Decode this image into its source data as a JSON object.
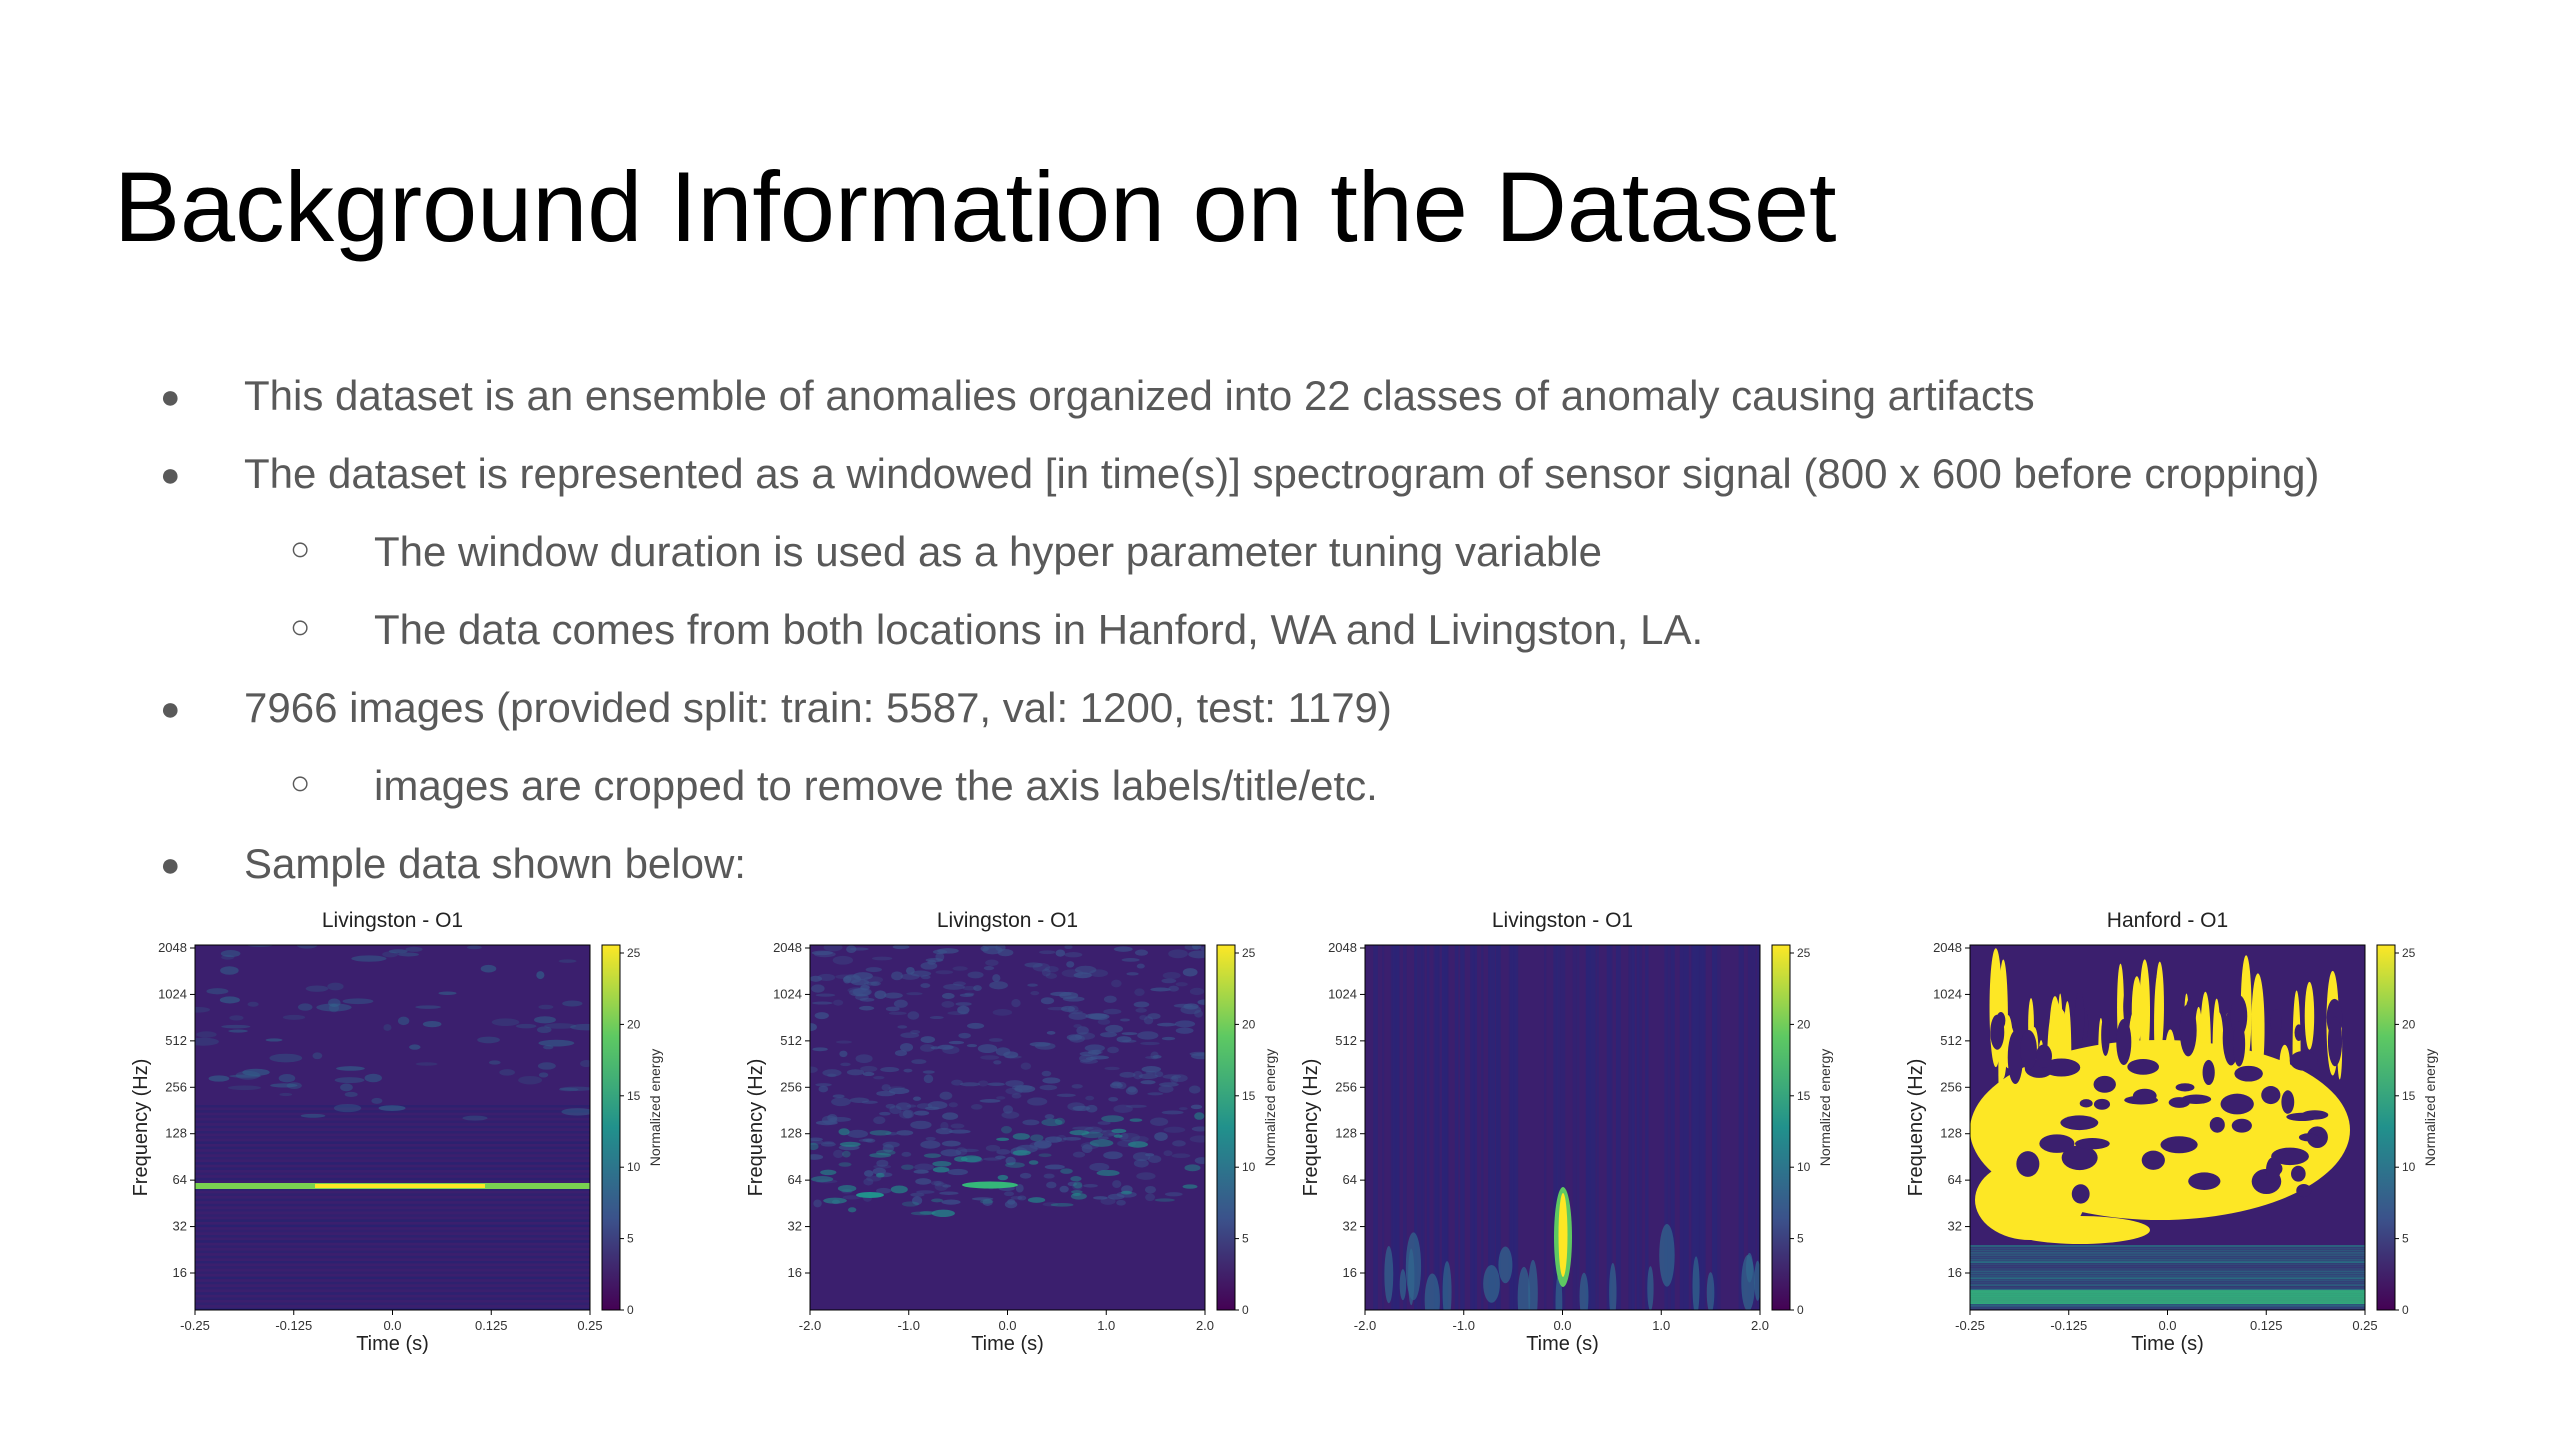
{
  "slide": {
    "title": "Background Information on the Dataset",
    "bullets": [
      {
        "level": 1,
        "text": "This dataset is an ensemble of anomalies organized into 22 classes of anomaly causing artifacts"
      },
      {
        "level": 1,
        "text": "The dataset is represented as a windowed [in time(s)] spectrogram of sensor signal (800 x 600 before cropping)"
      },
      {
        "level": 2,
        "text": "The window duration is used as a hyper parameter tuning variable"
      },
      {
        "level": 2,
        "text": "The data comes from both locations in Hanford, WA and Livingston, LA."
      },
      {
        "level": 1,
        "text": "7966 images (provided split: train: 5587, val: 1200, test: 1179)"
      },
      {
        "level": 2,
        "text": "images are cropped to remove the axis labels/title/etc."
      },
      {
        "level": 1,
        "text": "Sample data shown below:"
      }
    ],
    "markers": {
      "level1": "●",
      "level2": "○"
    }
  },
  "panels": [
    {
      "title": "Livingston - O1",
      "xlabel": "Time (s)",
      "ylabel": "Frequency (Hz)",
      "xticks": [
        "-0.25",
        "-0.125",
        "0.0",
        "0.125",
        "0.25"
      ],
      "yticks": [
        "2048",
        "1024",
        "512",
        "256",
        "128",
        "64",
        "32",
        "16"
      ],
      "colorbar_label": "Normalized energy",
      "colorbar_ticks": [
        "25",
        "20",
        "15",
        "10",
        "5",
        "0"
      ]
    },
    {
      "title": "Livingston - O1",
      "xlabel": "Time (s)",
      "ylabel": "Frequency (Hz)",
      "xticks": [
        "-2.0",
        "-1.0",
        "0.0",
        "1.0",
        "2.0"
      ],
      "yticks": [
        "2048",
        "1024",
        "512",
        "256",
        "128",
        "64",
        "32",
        "16"
      ],
      "colorbar_label": "Normalized energy",
      "colorbar_ticks": [
        "25",
        "20",
        "15",
        "10",
        "5",
        "0"
      ]
    },
    {
      "title": "Livingston - O1",
      "xlabel": "Time (s)",
      "ylabel": "Frequency (Hz)",
      "xticks": [
        "-2.0",
        "-1.0",
        "0.0",
        "1.0",
        "2.0"
      ],
      "yticks": [
        "2048",
        "1024",
        "512",
        "256",
        "128",
        "64",
        "32",
        "16"
      ],
      "colorbar_label": "Normalized energy",
      "colorbar_ticks": [
        "25",
        "20",
        "15",
        "10",
        "5",
        "0"
      ]
    },
    {
      "title": "Hanford - O1",
      "xlabel": "Time (s)",
      "ylabel": "Frequency (Hz)",
      "xticks": [
        "-0.25",
        "-0.125",
        "0.0",
        "0.125",
        "0.25"
      ],
      "yticks": [
        "2048",
        "1024",
        "512",
        "256",
        "128",
        "64",
        "32",
        "16"
      ],
      "colorbar_label": "Normalized energy",
      "colorbar_ticks": [
        "25",
        "20",
        "15",
        "10",
        "5",
        "0"
      ]
    }
  ],
  "colors": {
    "plot_background": "#3b1f6e",
    "colormap": [
      "#440154",
      "#3b528b",
      "#21918c",
      "#5ec962",
      "#fde725"
    ]
  }
}
